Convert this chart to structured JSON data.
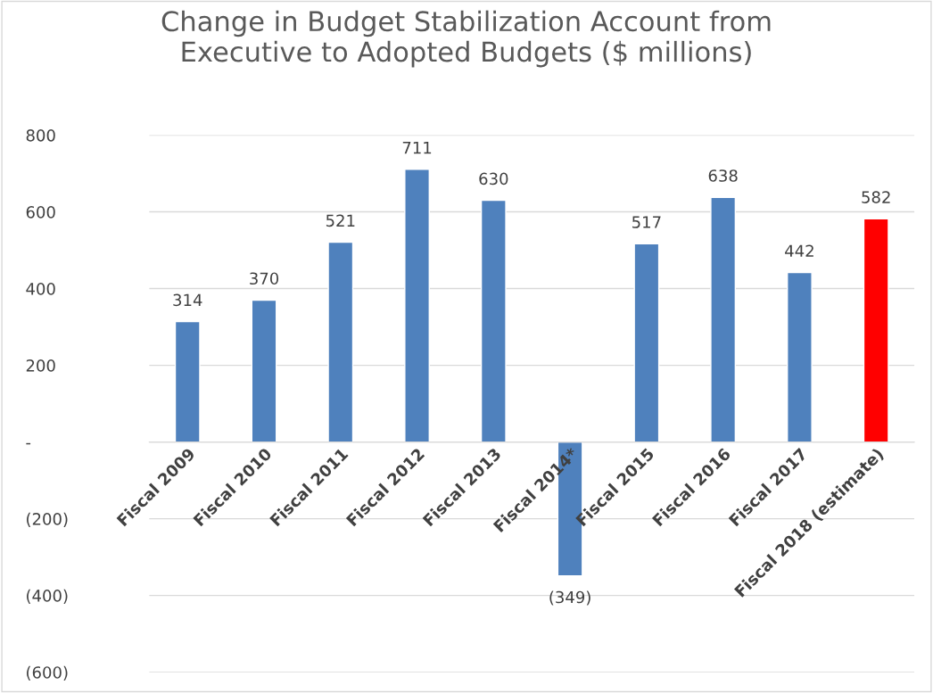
{
  "chart_data": {
    "type": "bar",
    "title": "Change in Budget Stabilization Account from\nExecutive to Adopted Budgets ($ millions)",
    "categories": [
      "Fiscal 2009",
      "Fiscal 2010",
      "Fiscal 2011",
      "Fiscal 2012",
      "Fiscal 2013",
      "Fiscal 2014*",
      "Fiscal 2015",
      "Fiscal 2016",
      "Fiscal 2017",
      "Fiscal 2018 (estimate)"
    ],
    "values": [
      314,
      370,
      521,
      711,
      630,
      -349,
      517,
      638,
      442,
      582
    ],
    "value_labels": [
      "314",
      "370",
      "521",
      "711",
      "630",
      "(349)",
      "517",
      "638",
      "442",
      "582"
    ],
    "colors": [
      "#4f81bd",
      "#4f81bd",
      "#4f81bd",
      "#4f81bd",
      "#4f81bd",
      "#4f81bd",
      "#4f81bd",
      "#4f81bd",
      "#4f81bd",
      "#ff0000"
    ],
    "ylim": [
      -600,
      800
    ],
    "yticks": [
      {
        "value": -600,
        "label": "(600)"
      },
      {
        "value": -400,
        "label": "(400)"
      },
      {
        "value": -200,
        "label": "(200)"
      },
      {
        "value": 0,
        "label": "-"
      },
      200,
      400,
      600,
      800
    ],
    "grid": "y"
  }
}
